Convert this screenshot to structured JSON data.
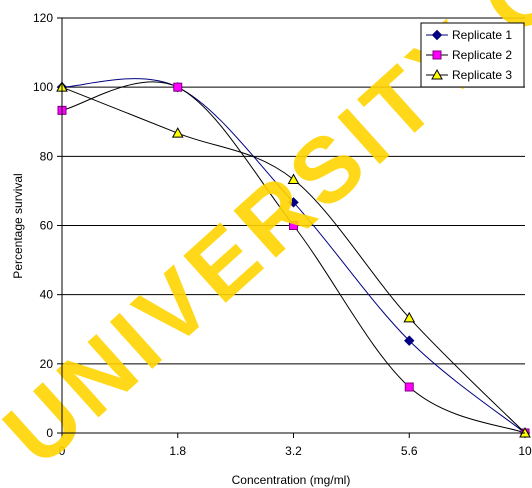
{
  "chart_data": {
    "type": "line",
    "title": "",
    "xlabel": "Concentration (mg/ml)",
    "ylabel": "Percentage survival",
    "categories": [
      "0",
      "1.8",
      "3.2",
      "5.6",
      "10"
    ],
    "ylim": [
      0,
      120
    ],
    "yticks": [
      "0",
      "20",
      "40",
      "60",
      "80",
      "100",
      "120"
    ],
    "grid": "horizontal",
    "legend_position": "top-right",
    "series": [
      {
        "name": "Replicate 1",
        "values": [
          100,
          100,
          66.7,
          26.7,
          0
        ],
        "color": "#000080",
        "marker": "diamond",
        "line_color": "#000080"
      },
      {
        "name": "Replicate 2",
        "values": [
          93.3,
          100,
          60,
          13.3,
          0
        ],
        "color": "#ff00ff",
        "marker": "square",
        "line_color": "#000000"
      },
      {
        "name": "Replicate 3",
        "values": [
          100,
          86.7,
          73.3,
          33.3,
          0
        ],
        "color": "#ffff00",
        "marker": "triangle",
        "line_color": "#000000"
      }
    ]
  },
  "watermark": {
    "text": "UNIVERSITY O",
    "color": "#ffd400"
  }
}
